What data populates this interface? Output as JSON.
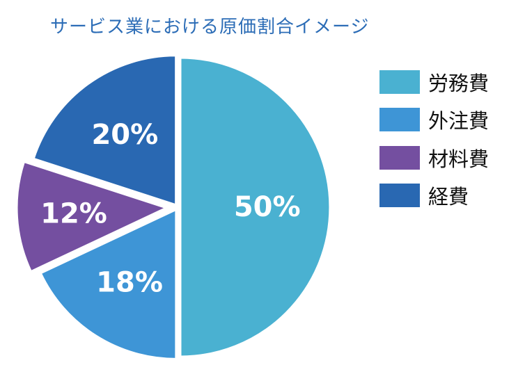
{
  "title": "サービス業における原価割合イメージ",
  "chart_data": {
    "type": "pie",
    "title": "サービス業における原価割合イメージ",
    "categories": [
      "労務費",
      "外注費",
      "材料費",
      "経費"
    ],
    "values": [
      50,
      18,
      12,
      20
    ],
    "labels": [
      "50%",
      "18%",
      "12%",
      "20%"
    ],
    "colors": [
      "#4ab1d1",
      "#3e95d6",
      "#744fa0",
      "#2968b2"
    ],
    "legend_position": "right"
  }
}
